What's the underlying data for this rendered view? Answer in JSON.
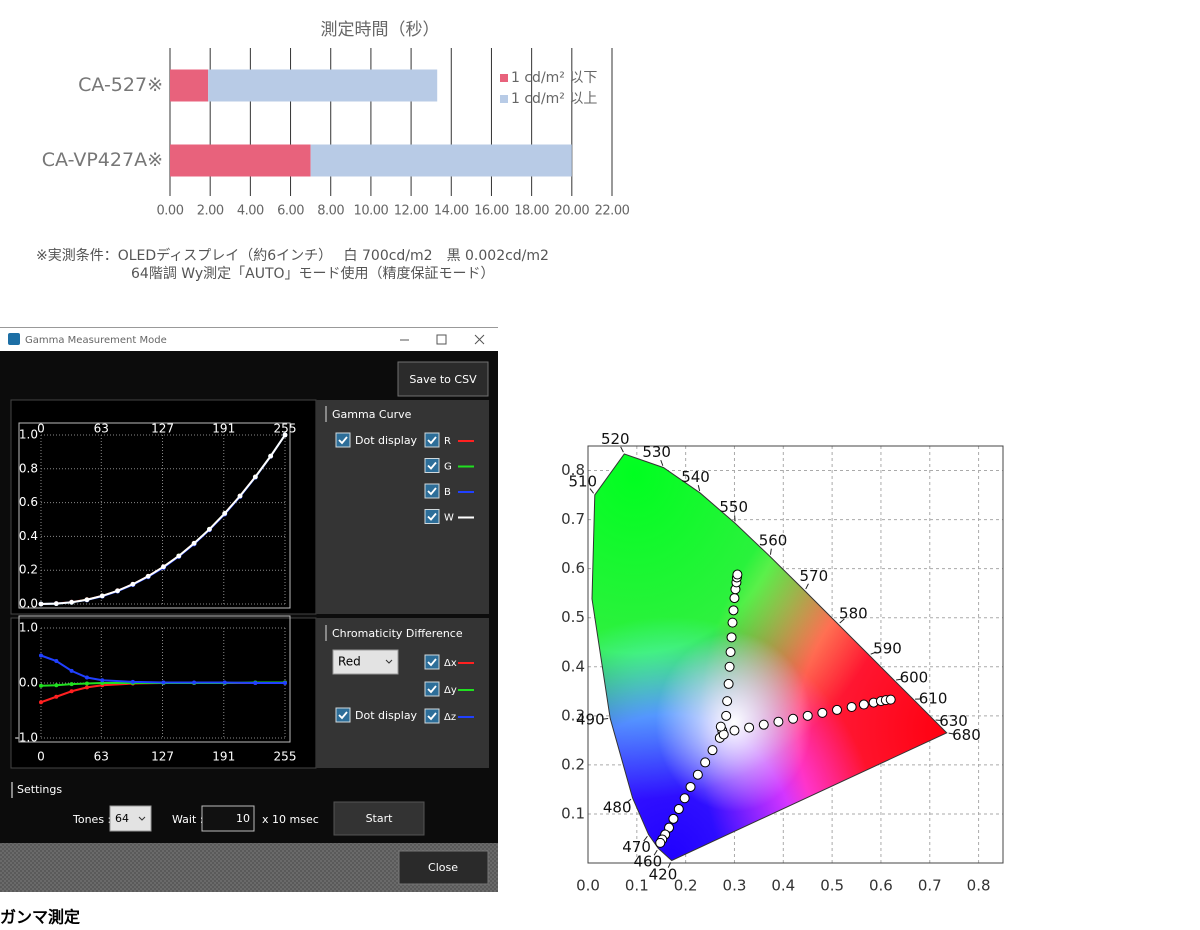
{
  "chart_data": [
    {
      "type": "bar",
      "orientation": "horizontal",
      "stacked": true,
      "title": "測定時間（秒）",
      "categories": [
        "CA-527※",
        "CA-VP427A※"
      ],
      "series": [
        {
          "name": "1 cd/m² 以下",
          "color": "#e8627c",
          "values": [
            1.9,
            7.0
          ]
        },
        {
          "name": "1 cd/m² 以上",
          "color": "#b8cbe6",
          "values": [
            11.4,
            13.0
          ]
        }
      ],
      "xlim": [
        0,
        22
      ],
      "xticks": [
        {
          "value": 0,
          "label": "0.00"
        },
        {
          "value": 2,
          "label": "2.00"
        },
        {
          "value": 4,
          "label": "4.00"
        },
        {
          "value": 6,
          "label": "6.00"
        },
        {
          "value": 8,
          "label": "8.00"
        },
        {
          "value": 10,
          "label": "10.00"
        },
        {
          "value": 12,
          "label": "12.00"
        },
        {
          "value": 14,
          "label": "14.00"
        },
        {
          "value": 16,
          "label": "16.00"
        },
        {
          "value": 18,
          "label": "18.00"
        },
        {
          "value": 20,
          "label": "20.00"
        },
        {
          "value": 22,
          "label": "22.00"
        }
      ],
      "grid": true,
      "legend": "right"
    },
    {
      "type": "line",
      "dots": true,
      "grid": true,
      "x": [
        0,
        16,
        32,
        48,
        64,
        80,
        96,
        112,
        128,
        144,
        160,
        176,
        192,
        208,
        224,
        240,
        255
      ],
      "series": [
        {
          "name": "R",
          "color": "#ff2020",
          "values": [
            0,
            0.003,
            0.011,
            0.026,
            0.048,
            0.078,
            0.117,
            0.164,
            0.22,
            0.284,
            0.359,
            0.442,
            0.536,
            0.639,
            0.752,
            0.875,
            1
          ]
        },
        {
          "name": "G",
          "color": "#20e020",
          "values": [
            0,
            0.002,
            0.01,
            0.025,
            0.047,
            0.077,
            0.116,
            0.163,
            0.219,
            0.284,
            0.358,
            0.442,
            0.535,
            0.638,
            0.751,
            0.875,
            1
          ]
        },
        {
          "name": "B",
          "color": "#2040ff",
          "values": [
            0,
            0.002,
            0.01,
            0.024,
            0.046,
            0.076,
            0.114,
            0.161,
            0.216,
            0.281,
            0.355,
            0.439,
            0.532,
            0.636,
            0.75,
            0.874,
            1
          ]
        },
        {
          "name": "W",
          "color": "#ffffff",
          "values": [
            0,
            0.002,
            0.01,
            0.025,
            0.048,
            0.078,
            0.117,
            0.164,
            0.22,
            0.284,
            0.359,
            0.442,
            0.536,
            0.639,
            0.752,
            0.875,
            1
          ]
        }
      ],
      "xlim": [
        0,
        255
      ],
      "xticks": [
        0,
        63,
        127,
        191,
        255
      ],
      "ylim": [
        0,
        1
      ],
      "yticks": [
        {
          "value": 0,
          "label": "0.0"
        },
        0.2,
        0.4,
        0.6,
        0.8,
        {
          "value": 1,
          "label": "1.0"
        }
      ]
    },
    {
      "type": "line",
      "dots": true,
      "grid": true,
      "x": [
        0,
        16,
        32,
        48,
        64,
        96,
        128,
        160,
        192,
        224,
        255
      ],
      "series": [
        {
          "name": "Δx",
          "color": "#ff2020",
          "values": [
            -0.35,
            -0.25,
            -0.15,
            -0.08,
            -0.04,
            -0.01,
            0,
            0,
            0,
            0,
            0.01
          ]
        },
        {
          "name": "Δy",
          "color": "#20e020",
          "values": [
            -0.05,
            -0.04,
            -0.02,
            -0.01,
            0,
            0,
            0,
            0,
            0,
            0.01,
            0.01
          ]
        },
        {
          "name": "Δz",
          "color": "#2040ff",
          "values": [
            0.5,
            0.4,
            0.22,
            0.1,
            0.05,
            0.02,
            0.01,
            0.01,
            0.01,
            0,
            0
          ]
        }
      ],
      "xlim": [
        0,
        255
      ],
      "xticks": [
        0,
        63,
        127,
        191,
        255
      ],
      "ylim": [
        -1,
        1
      ],
      "yticks": [
        {
          "value": -1,
          "label": "-1.0"
        },
        {
          "value": 0,
          "label": "0.0"
        },
        {
          "value": 1,
          "label": "1.0"
        }
      ]
    },
    {
      "type": "scatter",
      "grid": true,
      "locus": {
        "wavelengths": [
          "420",
          "460",
          "470",
          "480",
          "490",
          null,
          "510",
          "520",
          "530",
          "540",
          "550",
          "560",
          "570",
          "580",
          "590",
          "600",
          "610",
          "630",
          "680"
        ],
        "x": [
          0.1714,
          0.144,
          0.1241,
          0.0913,
          0.0454,
          0.0082,
          0.0139,
          0.0743,
          0.1547,
          0.2296,
          0.3016,
          0.3731,
          0.4441,
          0.5125,
          0.5752,
          0.627,
          0.6658,
          0.7079,
          0.7347
        ],
        "y": [
          0.0051,
          0.0297,
          0.0578,
          0.1327,
          0.295,
          0.5384,
          0.7502,
          0.8338,
          0.8059,
          0.7543,
          0.6923,
          0.6245,
          0.5547,
          0.4866,
          0.4242,
          0.3725,
          0.334,
          0.292,
          0.2653
        ]
      },
      "series": [
        {
          "color": "#ffffff",
          "x": [
            0.283,
            0.285,
            0.288,
            0.29,
            0.292,
            0.294,
            0.296,
            0.298,
            0.3,
            0.302,
            0.304,
            0.305,
            0.306,
            0.3,
            0.33,
            0.36,
            0.39,
            0.42,
            0.45,
            0.48,
            0.51,
            0.54,
            0.565,
            0.585,
            0.6,
            0.61,
            0.62,
            0.27,
            0.255,
            0.24,
            0.225,
            0.21,
            0.198,
            0.186,
            0.175,
            0.166,
            0.158,
            0.152,
            0.148,
            0.275,
            0.278,
            0.272
          ],
          "y": [
            0.3,
            0.33,
            0.365,
            0.4,
            0.43,
            0.46,
            0.49,
            0.515,
            0.54,
            0.558,
            0.572,
            0.582,
            0.588,
            0.27,
            0.276,
            0.282,
            0.288,
            0.294,
            0.3,
            0.306,
            0.312,
            0.318,
            0.323,
            0.327,
            0.33,
            0.332,
            0.333,
            0.255,
            0.23,
            0.205,
            0.18,
            0.155,
            0.132,
            0.11,
            0.09,
            0.072,
            0.058,
            0.048,
            0.041,
            0.27,
            0.262,
            0.278
          ]
        }
      ],
      "xlim": [
        0,
        0.85
      ],
      "xticks": [
        {
          "value": 0,
          "label": "0.0"
        },
        0.1,
        0.2,
        0.3,
        0.4,
        0.5,
        0.6,
        0.7,
        0.8
      ],
      "ylim": [
        0,
        0.85
      ],
      "yticks": [
        0.1,
        0.2,
        0.3,
        0.4,
        0.5,
        0.6,
        0.7,
        0.8
      ]
    }
  ],
  "note": [
    "※実測条件：OLEDディスプレイ（約6インチ）　 白 700cd/m2　黒 0.002cd/m2",
    "64階調 Wy測定「AUTO」モード使用（精度保証モード）"
  ],
  "window": {
    "title": "Gamma Measurement Mode",
    "save_button": "Save to CSV",
    "gamma_panel": {
      "title": "Gamma Curve",
      "dot_display": "Dot display"
    },
    "chroma_panel": {
      "title": "Chromaticity Difference",
      "component": "Red",
      "dot_display": "Dot display"
    },
    "settings": {
      "title": "Settings",
      "tones_label": "Tones :",
      "tones": 64,
      "wait_label": "Wait :",
      "wait": 10,
      "wait_unit": "x 10 msec",
      "start_button": "Start"
    },
    "close_button": "Close"
  },
  "caption": "ガンマ測定"
}
